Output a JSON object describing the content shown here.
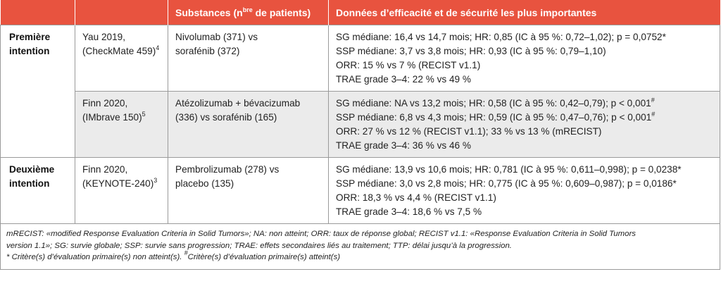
{
  "header": {
    "col1": "",
    "col2": "",
    "col3_prefix": "Substances (n",
    "col3_sup": "bre",
    "col3_suffix": " de patients)",
    "col4": "Données d’efficacité et de sécurité les plus importantes"
  },
  "groups": {
    "first": {
      "line1": "Première",
      "line2": "intention"
    },
    "second": {
      "line1": "Deuxième",
      "line2": "intention"
    }
  },
  "rows": [
    {
      "study_line1": "Yau 2019,",
      "study_line2": "(CheckMate 459)",
      "study_ref": "4",
      "subst_line1": "Nivolumab (371) vs",
      "subst_line2": "sorafénib (372)",
      "data": [
        {
          "text": "SG médiane: 16,4 vs 14,7 mois; HR: 0,85 (IC à 95 %: 0,72–1,02); p = 0,0752*",
          "sup": ""
        },
        {
          "text": "SSP médiane: 3,7 vs 3,8 mois; HR: 0,93 (IC à 95 %: 0,79–1,10)",
          "sup": ""
        },
        {
          "text": "ORR: 15 % vs 7 % (RECIST v1.1)",
          "sup": ""
        },
        {
          "text": "TRAE grade 3–4: 22 % vs 49 %",
          "sup": ""
        }
      ]
    },
    {
      "study_line1": "Finn 2020,",
      "study_line2": "(IMbrave 150)",
      "study_ref": "5",
      "subst_line1": "Atézolizumab + bévacizumab",
      "subst_line2": "(336) vs sorafénib (165)",
      "data": [
        {
          "text": "SG médiane: NA vs 13,2 mois; HR: 0,58 (IC à 95 %: 0,42–0,79); p < 0,001",
          "sup": "#"
        },
        {
          "text": "SSP médiane: 6,8 vs 4,3 mois; HR: 0,59 (IC à 95 %: 0,47–0,76); p < 0,001",
          "sup": "#"
        },
        {
          "text": "ORR: 27 % vs 12 % (RECIST v1.1); 33 % vs 13 % (mRECIST)",
          "sup": ""
        },
        {
          "text": "TRAE grade 3–4: 36 % vs 46 %",
          "sup": ""
        }
      ]
    },
    {
      "study_line1": "Finn 2020,",
      "study_line2": "(KEYNOTE-240)",
      "study_ref": "3",
      "subst_line1": "Pembrolizumab (278) vs",
      "subst_line2": "placebo (135)",
      "data": [
        {
          "text": "SG médiane: 13,9 vs 10,6 mois; HR: 0,781 (IC à 95 %: 0,611–0,998); p = 0,0238*",
          "sup": ""
        },
        {
          "text": "SSP médiane: 3,0 vs 2,8 mois; HR: 0,775 (IC à 95 %: 0,609–0,987); p = 0,0186*",
          "sup": ""
        },
        {
          "text": "ORR: 18,3 % vs 4,4 % (RECIST v1.1)",
          "sup": ""
        },
        {
          "text": "TRAE grade 3–4: 18,6 % vs 7,5 %",
          "sup": ""
        }
      ]
    }
  ],
  "footnote": {
    "line1": "mRECIST: «modified Response Evaluation Criteria in Solid Tumors»; NA: non atteint; ORR: taux de réponse global; RECIST v1.1: «Response Evaluation Criteria in Solid Tumors",
    "line2": "version 1.1»; SG: survie globale; SSP: survie sans progression; TRAE: effets secondaires liés au traitement; TTP: délai jusqu’à la progression.",
    "line3_a": "* Critère(s) d’évaluation primaire(s) non atteint(s). ",
    "line3_sup": "#",
    "line3_b": "Critère(s) d’évaluation primaire(s) atteint(s)"
  },
  "colors": {
    "header_bg": "#e8533f",
    "shade_bg": "#ebebeb",
    "border": "#9a9a9a"
  }
}
